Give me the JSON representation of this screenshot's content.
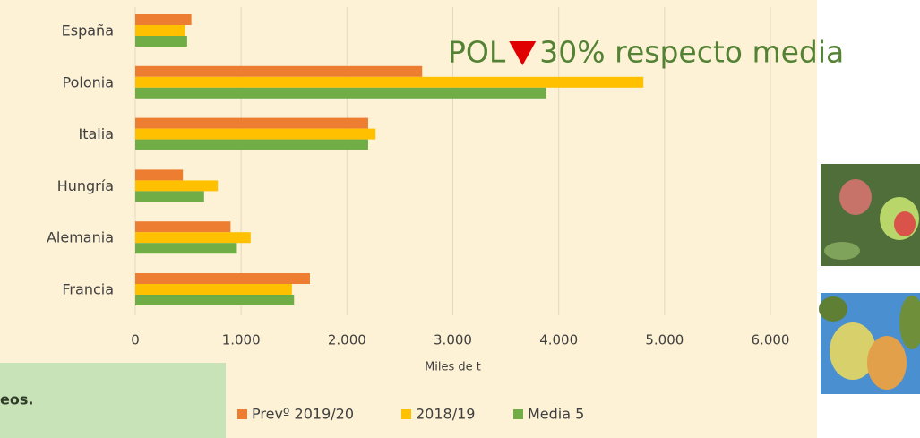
{
  "chart_data": {
    "type": "bar",
    "orientation": "horizontal",
    "categories": [
      "España",
      "Polonia",
      "Italia",
      "Hungría",
      "Alemania",
      "Francia"
    ],
    "series": [
      {
        "name": "Prevº 2019/20",
        "color": "#ed7d31",
        "values": [
          530,
          2710,
          2200,
          450,
          900,
          1650
        ]
      },
      {
        "name": "2018/19",
        "color": "#ffc000",
        "values": [
          470,
          4800,
          2270,
          780,
          1090,
          1480
        ]
      },
      {
        "name": "Media 5",
        "color": "#70ad47",
        "values": [
          490,
          3880,
          2200,
          650,
          960,
          1500
        ]
      }
    ],
    "xlim": [
      0,
      6000
    ],
    "xticks": [
      0,
      {
        "value": 1000,
        "label": "1.000"
      },
      {
        "value": 2000,
        "label": "2.000"
      },
      {
        "value": 3000,
        "label": "3.000"
      },
      {
        "value": 4000,
        "label": "4.000"
      },
      {
        "value": 5000,
        "label": "5.000"
      },
      {
        "value": 6000,
        "label": "6.000"
      }
    ],
    "xlabel": "Miles de t",
    "grid": true,
    "legend": "bottom",
    "annotation": [
      "POL",
      "30% respecto media"
    ],
    "note": "eos."
  }
}
